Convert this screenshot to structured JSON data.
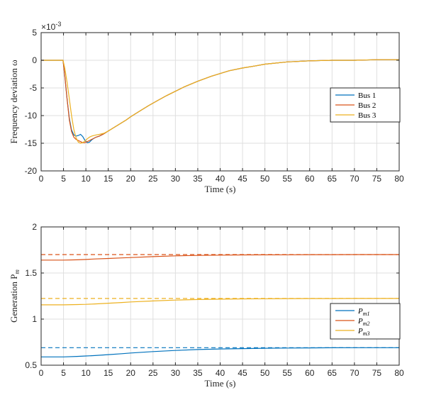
{
  "chart_data": [
    {
      "type": "line",
      "xlabel": "Time (s)",
      "ylabel": "Frequency deviation ω",
      "exponent_label": "×10",
      "exponent_value": "-3",
      "xlim": [
        0,
        80
      ],
      "ylim": [
        -20,
        5
      ],
      "xticks": [
        "0",
        "5",
        "10",
        "15",
        "20",
        "25",
        "30",
        "35",
        "40",
        "45",
        "50",
        "55",
        "60",
        "65",
        "70",
        "75",
        "80"
      ],
      "yticks": [
        "5",
        "0",
        "-5",
        "-10",
        "-15",
        "-20"
      ],
      "ytick_values": [
        5,
        0,
        -5,
        -10,
        -15,
        -20
      ],
      "grid": true,
      "legend_placement": "right-center",
      "series": [
        {
          "name": "Bus 1",
          "color": "#0072BD",
          "x": [
            0,
            4.9,
            5.3,
            5.8,
            6.3,
            6.8,
            7.3,
            7.8,
            8.3,
            8.8,
            9.3,
            9.8,
            10.3,
            10.8,
            11.3,
            11.8,
            12.3,
            13,
            14,
            15,
            16,
            17,
            18,
            19,
            20,
            22,
            24,
            26,
            28,
            30,
            32,
            35,
            38,
            40,
            42,
            45,
            48,
            50,
            55,
            60,
            65,
            70,
            75,
            80
          ],
          "y": [
            0,
            0,
            -3,
            -7,
            -10.5,
            -12.6,
            -13.5,
            -13.7,
            -13.6,
            -13.4,
            -13.8,
            -14.5,
            -14.9,
            -14.8,
            -14.4,
            -14.1,
            -13.9,
            -13.7,
            -13.3,
            -12.8,
            -12.3,
            -11.8,
            -11.3,
            -10.8,
            -10.2,
            -9.2,
            -8.2,
            -7.3,
            -6.4,
            -5.6,
            -4.8,
            -3.8,
            -2.9,
            -2.4,
            -1.9,
            -1.4,
            -1,
            -0.7,
            -0.3,
            -0.1,
            0,
            0,
            0.1,
            0.1
          ]
        },
        {
          "name": "Bus 2",
          "color": "#D95319",
          "x": [
            0,
            4.9,
            5.3,
            5.8,
            6.3,
            6.8,
            7.3,
            7.8,
            8.3,
            8.8,
            9.3,
            9.8,
            10.3,
            10.8,
            11.3,
            11.8,
            12.3,
            13,
            14,
            15,
            16,
            17,
            18,
            19,
            20,
            22,
            24,
            26,
            28,
            30,
            32,
            35,
            38,
            40,
            42,
            45,
            48,
            50,
            55,
            60,
            65,
            70,
            75,
            80
          ],
          "y": [
            0,
            0,
            -3,
            -7,
            -10.8,
            -12.9,
            -13.9,
            -14.3,
            -14.5,
            -14.7,
            -14.9,
            -14.9,
            -14.7,
            -14.5,
            -14.3,
            -14.1,
            -13.9,
            -13.7,
            -13.3,
            -12.8,
            -12.3,
            -11.8,
            -11.3,
            -10.8,
            -10.2,
            -9.2,
            -8.2,
            -7.3,
            -6.4,
            -5.6,
            -4.8,
            -3.8,
            -2.9,
            -2.4,
            -1.9,
            -1.4,
            -1,
            -0.7,
            -0.3,
            -0.1,
            0,
            0,
            0.1,
            0.1
          ]
        },
        {
          "name": "Bus 3",
          "color": "#EDB120",
          "x": [
            0,
            4.9,
            5.3,
            5.8,
            6.3,
            6.8,
            7.3,
            7.8,
            8.3,
            8.8,
            9.3,
            9.8,
            10.3,
            10.8,
            11.3,
            11.8,
            12.3,
            13,
            14,
            15,
            16,
            17,
            18,
            19,
            20,
            22,
            24,
            26,
            28,
            30,
            32,
            35,
            38,
            40,
            42,
            45,
            48,
            50,
            55,
            60,
            65,
            70,
            75,
            80
          ],
          "y": [
            0,
            0,
            -1.5,
            -4,
            -7,
            -10,
            -12.5,
            -14,
            -14.8,
            -15,
            -14.9,
            -14.6,
            -14.2,
            -13.9,
            -13.7,
            -13.6,
            -13.5,
            -13.4,
            -13.2,
            -12.8,
            -12.3,
            -11.8,
            -11.3,
            -10.8,
            -10.2,
            -9.2,
            -8.2,
            -7.3,
            -6.4,
            -5.6,
            -4.8,
            -3.8,
            -2.9,
            -2.4,
            -1.9,
            -1.4,
            -1,
            -0.7,
            -0.3,
            -0.1,
            0,
            0,
            0.1,
            0.1
          ]
        }
      ]
    },
    {
      "type": "line",
      "xlabel": "Time (s)",
      "ylabel": "Generation P",
      "ylabel_subscript": "m",
      "xlim": [
        0,
        80
      ],
      "ylim": [
        0.5,
        2
      ],
      "xticks": [
        "0",
        "5",
        "10",
        "15",
        "20",
        "25",
        "30",
        "35",
        "40",
        "45",
        "50",
        "55",
        "60",
        "65",
        "70",
        "75",
        "80"
      ],
      "yticks": [
        "2",
        "1.5",
        "1",
        "0.5"
      ],
      "ytick_values": [
        2,
        1.5,
        1,
        0.5
      ],
      "grid": true,
      "legend_placement": "bottom-right",
      "series": [
        {
          "name": "P",
          "subscript": "m1",
          "color": "#0072BD",
          "x": [
            0,
            5,
            8,
            10,
            12,
            15,
            18,
            20,
            25,
            30,
            35,
            40,
            45,
            50,
            55,
            60,
            65,
            70,
            75,
            80
          ],
          "y": [
            0.59,
            0.59,
            0.595,
            0.6,
            0.605,
            0.615,
            0.625,
            0.632,
            0.648,
            0.66,
            0.67,
            0.676,
            0.68,
            0.684,
            0.686,
            0.688,
            0.689,
            0.69,
            0.69,
            0.69
          ]
        },
        {
          "name": "P",
          "subscript": "m2",
          "color": "#D95319",
          "x": [
            0,
            5,
            8,
            10,
            12,
            15,
            18,
            20,
            25,
            30,
            35,
            40,
            45,
            50,
            55,
            60,
            65,
            70,
            75,
            80
          ],
          "y": [
            1.64,
            1.64,
            1.643,
            1.647,
            1.652,
            1.658,
            1.664,
            1.668,
            1.678,
            1.686,
            1.691,
            1.694,
            1.696,
            1.697,
            1.698,
            1.699,
            1.699,
            1.7,
            1.7,
            1.7
          ]
        },
        {
          "name": "P",
          "subscript": "m3",
          "color": "#EDB120",
          "x": [
            0,
            5,
            8,
            10,
            12,
            15,
            18,
            20,
            25,
            30,
            35,
            40,
            45,
            50,
            55,
            60,
            65,
            70,
            75,
            80
          ],
          "y": [
            1.155,
            1.155,
            1.158,
            1.16,
            1.165,
            1.172,
            1.18,
            1.186,
            1.197,
            1.206,
            1.212,
            1.216,
            1.219,
            1.221,
            1.222,
            1.223,
            1.223,
            1.224,
            1.224,
            1.224
          ]
        },
        {
          "name": "",
          "color": "#0072BD",
          "dashed": true,
          "in_legend": false,
          "x": [
            0,
            80
          ],
          "y": [
            0.69,
            0.69
          ]
        },
        {
          "name": "",
          "color": "#D95319",
          "dashed": true,
          "in_legend": false,
          "x": [
            0,
            80
          ],
          "y": [
            1.7,
            1.7
          ]
        },
        {
          "name": "",
          "color": "#EDB120",
          "dashed": true,
          "in_legend": false,
          "x": [
            0,
            80
          ],
          "y": [
            1.224,
            1.224
          ]
        }
      ]
    }
  ]
}
